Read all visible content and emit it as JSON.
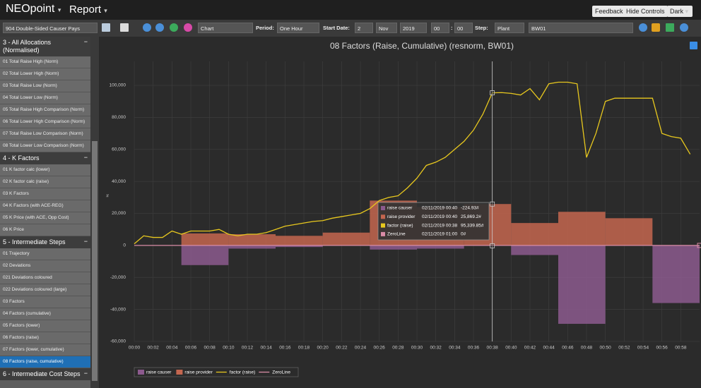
{
  "header": {
    "brand": "NEOpoint",
    "menu": "Report",
    "buttons": [
      "Feedback",
      "Hide Controls",
      "Dark"
    ]
  },
  "toolbar": {
    "report": "904 Double-Sided Causer Pays",
    "view": "Chart",
    "period_label": "Period:",
    "period": "One Hour",
    "start_date_label": "Start Date:",
    "day": "2",
    "month": "Nov",
    "year": "2019",
    "hour": "00",
    "separator": ":",
    "minute": "00",
    "step_label": "Step:",
    "step": "Plant",
    "unit": "BW01"
  },
  "sidebar": {
    "sections": [
      {
        "title": "3 - All Allocations (Normalised)",
        "items": [
          "01 Total Raise High (Norm)",
          "02 Total Lower High (Norm)",
          "03 Total Raise Low (Norm)",
          "04 Total Lower Low (Norm)",
          "05 Total Raise High Comparison (Norm)",
          "06 Total Lower High Comparison (Norm)",
          "07 Total Raise Low Comparison (Norm)",
          "08 Total Lower Low Comparison (Norm)"
        ]
      },
      {
        "title": "4 - K Factors",
        "items": [
          "01 K factor calc (lower)",
          "02 K factor calc (raise)",
          "03 K Factors",
          "04 K Factors (with ACE-REG)",
          "05 K Price (with ACE, Opp Cost)",
          "06 K Price"
        ]
      },
      {
        "title": "5 - Intermediate Steps",
        "items": [
          "01 Trajectory",
          "02 Deviations",
          "021 Deviations coloured",
          "022 Deviations coloured (large)",
          "03 Factors",
          "04 Factors (cumulative)",
          "05 Factors (lower)",
          "06 Factors (raise)",
          "07 Factors (lower, cumulative)",
          "08 Factors (raise, cumulative)"
        ],
        "selected": 9
      },
      {
        "title": "6 - Intermediate Cost Steps",
        "items": []
      }
    ]
  },
  "chart": {
    "type": "combo",
    "title": "08 Factors (Raise, Cumulative) (resnorm, BW01)",
    "y_label": "#",
    "xlim": [
      0,
      60
    ],
    "xticks": [
      {
        "value": 0,
        "label": "00:00"
      },
      {
        "value": 2,
        "label": "00:02"
      },
      {
        "value": 4,
        "label": "00:04"
      },
      {
        "value": 6,
        "label": "00:06"
      },
      {
        "value": 8,
        "label": "00:08"
      },
      {
        "value": 10,
        "label": "00:10"
      },
      {
        "value": 12,
        "label": "00:12"
      },
      {
        "value": 14,
        "label": "00:14"
      },
      {
        "value": 16,
        "label": "00:16"
      },
      {
        "value": 18,
        "label": "00:18"
      },
      {
        "value": 20,
        "label": "00:20"
      },
      {
        "value": 22,
        "label": "00:22"
      },
      {
        "value": 24,
        "label": "00:24"
      },
      {
        "value": 26,
        "label": "00:26"
      },
      {
        "value": 28,
        "label": "00:28"
      },
      {
        "value": 30,
        "label": "00:30"
      },
      {
        "value": 32,
        "label": "00:32"
      },
      {
        "value": 34,
        "label": "00:34"
      },
      {
        "value": 36,
        "label": "00:36"
      },
      {
        "value": 38,
        "label": "00:38"
      },
      {
        "value": 40,
        "label": "00:40"
      },
      {
        "value": 42,
        "label": "00:42"
      },
      {
        "value": 44,
        "label": "00:44"
      },
      {
        "value": 46,
        "label": "00:46"
      },
      {
        "value": 48,
        "label": "00:48"
      },
      {
        "value": 50,
        "label": "00:50"
      },
      {
        "value": 52,
        "label": "00:52"
      },
      {
        "value": 54,
        "label": "00:54"
      },
      {
        "value": 56,
        "label": "00:56"
      },
      {
        "value": 58,
        "label": "00:58"
      }
    ],
    "ylim": [
      -60000,
      115000
    ],
    "yticks": [
      {
        "value": -60000,
        "label": "-60,000"
      },
      {
        "value": -40000,
        "label": "-40,000"
      },
      {
        "value": -20000,
        "label": "-20,000"
      },
      0,
      {
        "value": 20000,
        "label": "20,000"
      },
      {
        "value": 40000,
        "label": "40,000"
      },
      {
        "value": 60000,
        "label": "60,000"
      },
      {
        "value": 80000,
        "label": "80,000"
      },
      {
        "value": 100000,
        "label": "100,000"
      }
    ],
    "grid": true,
    "series": [
      {
        "name": "raise causer",
        "type": "step-bar",
        "color": "#8c5a8e",
        "x": [
          10,
          15,
          20,
          25,
          30,
          35,
          40,
          45,
          50,
          55,
          60
        ],
        "values": [
          -12300,
          -2000,
          -1000,
          0,
          -2600,
          -2000,
          -224.93,
          -6000,
          -49000,
          0,
          -36000
        ]
      },
      {
        "name": "raise provider",
        "type": "step-bar",
        "color": "#c4664f",
        "x": [
          10,
          15,
          20,
          25,
          30,
          35,
          40,
          45,
          50,
          55,
          60
        ],
        "values": [
          7500,
          7000,
          6000,
          8000,
          28000,
          24000,
          25869.2,
          14000,
          21000,
          17000,
          0
        ]
      },
      {
        "name": "factor (raise)",
        "type": "line",
        "color": "#e8c81e",
        "x": [
          0,
          1,
          2,
          3,
          4,
          5,
          6,
          7,
          8,
          9,
          10,
          11,
          12,
          13,
          14,
          15,
          16,
          17,
          18,
          19,
          20,
          21,
          22,
          23,
          24,
          25,
          26,
          27,
          28,
          29,
          30,
          31,
          32,
          33,
          34,
          35,
          36,
          37,
          38,
          39,
          40,
          41,
          42,
          43,
          44,
          45,
          46,
          47,
          48,
          49,
          50,
          51,
          52,
          53,
          54,
          55,
          56,
          57,
          58,
          59
        ],
        "values": [
          1000,
          6000,
          5000,
          5000,
          9000,
          7000,
          9000,
          9000,
          9000,
          10000,
          7000,
          6000,
          7000,
          7000,
          8000,
          10000,
          12000,
          13000,
          14000,
          15000,
          15500,
          17000,
          18000,
          19000,
          20000,
          23000,
          28000,
          30000,
          31000,
          36000,
          42000,
          50000,
          52000,
          55000,
          60000,
          65000,
          72000,
          82000,
          95339.85,
          95500,
          95000,
          94000,
          98000,
          91000,
          101000,
          102000,
          102000,
          101000,
          55000,
          70000,
          90000,
          92000,
          92000,
          92000,
          92000,
          92000,
          70000,
          68000,
          67000,
          57000
        ]
      },
      {
        "name": "ZeroLine",
        "type": "line",
        "color": "#d98ca6",
        "x": [
          0,
          60
        ],
        "values": [
          0,
          0
        ]
      }
    ],
    "tooltip": {
      "point": 38,
      "rows": [
        {
          "series": 0,
          "time": "02/11/2019 00:40",
          "value": "-224.93#"
        },
        {
          "series": 1,
          "time": "02/11/2019 00:40",
          "value": "25,869.2#"
        },
        {
          "series": 2,
          "time": "02/11/2019 00:38",
          "value": "95,339.85#"
        },
        {
          "series": 3,
          "time": "02/11/2019 01:00",
          "value": "0#"
        }
      ]
    }
  }
}
